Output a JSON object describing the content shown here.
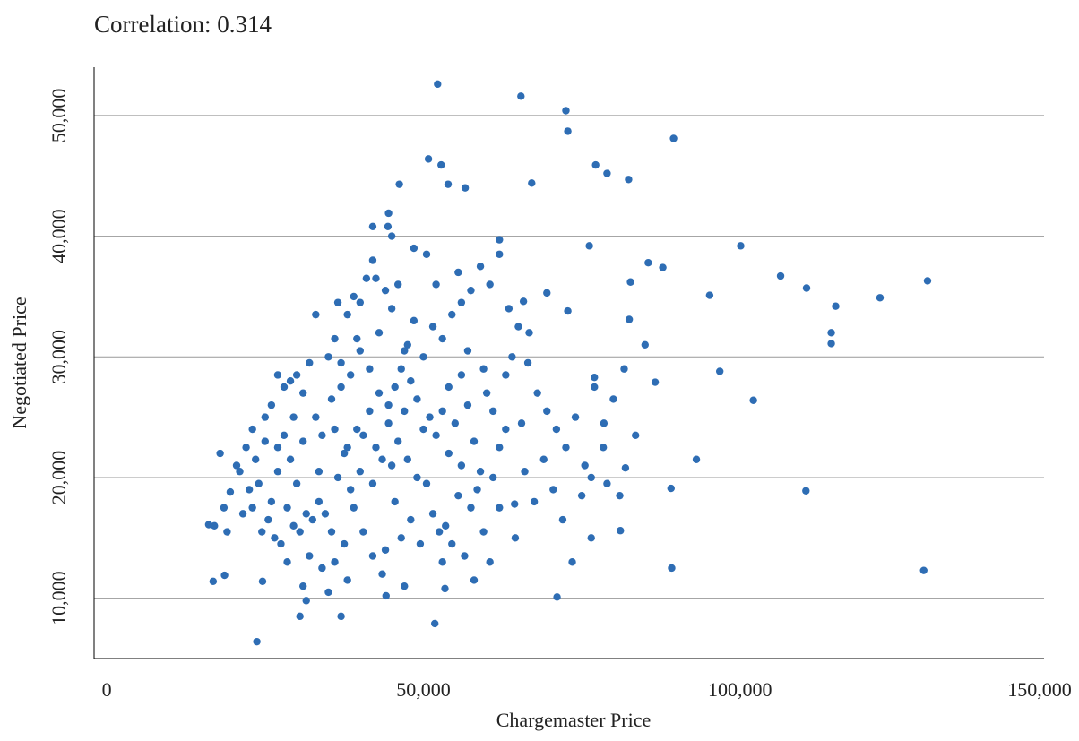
{
  "chart_data": {
    "type": "scatter",
    "title": "Correlation: 0.314",
    "xlabel": "Chargemaster Price",
    "ylabel": "Negotiated Price",
    "color": "#2e6db4",
    "grid": true,
    "xlim": [
      -2000,
      148000
    ],
    "ylim": [
      5000,
      54000
    ],
    "xticks": [
      0,
      {
        "value": 50000,
        "label": "50,000"
      },
      {
        "value": 100000,
        "label": "100,000"
      },
      {
        "value": 150000,
        "label": "150,000"
      }
    ],
    "yticks": [
      {
        "value": 10000,
        "label": "10,000"
      },
      {
        "value": 20000,
        "label": "20,000"
      },
      {
        "value": 30000,
        "label": "30,000"
      },
      {
        "value": 40000,
        "label": "40,000"
      },
      {
        "value": 50000,
        "label": "50,000"
      }
    ],
    "x": [
      52240,
      65400,
      72500,
      72800,
      89500,
      46200,
      50800,
      52800,
      53900,
      56600,
      67100,
      77200,
      79000,
      82400,
      44500,
      44400,
      42000,
      62000,
      76200,
      100100,
      106400,
      110500,
      129600,
      122100,
      115100,
      95200,
      87800,
      85500,
      82700,
      114400,
      114400,
      102100,
      96800,
      86600,
      93100,
      110400,
      89200,
      129000,
      71100,
      51800,
      23700,
      16800,
      18600,
      24600,
      30500,
      37000,
      31500,
      44100,
      53400,
      64400,
      76500,
      81100,
      78400,
      89100,
      81900,
      17900,
      16100,
      65800,
      66700,
      69500,
      72800,
      82500,
      77000,
      81700,
      17000,
      18500,
      19500,
      20500,
      22000,
      23000,
      24000,
      25000,
      26000,
      27000,
      28000,
      29000,
      30000,
      31000,
      25500,
      26500,
      27500,
      28500,
      29500,
      30500,
      31500,
      32500,
      33500,
      34500,
      35500,
      36500,
      37500,
      38500,
      39500,
      40500,
      41500,
      42500,
      43500,
      44500,
      45500,
      46500,
      47500,
      48500,
      35000,
      36000,
      37000,
      38000,
      39000,
      40000,
      41000,
      42000,
      43000,
      44000,
      45000,
      46000,
      47000,
      48000,
      49000,
      50000,
      51000,
      52000,
      53000,
      54000,
      55000,
      56000,
      57000,
      58000,
      59000,
      60000,
      61000,
      62000,
      63000,
      64000,
      50500,
      51500,
      52500,
      53500,
      54500,
      55500,
      56500,
      57500,
      58500,
      59500,
      60500,
      49500,
      48000,
      46500,
      45500,
      44000,
      42000,
      40500,
      39000,
      37500,
      36000,
      34000,
      32000,
      31000,
      30000,
      29000,
      28000,
      27000,
      33000,
      34000,
      35500,
      37000,
      38500,
      40000,
      41500,
      43000,
      44500,
      46000,
      47500,
      49000,
      50000,
      51500,
      53000,
      54500,
      56000,
      57500,
      59000,
      60500,
      62000,
      63500,
      65000,
      66500,
      68000,
      69500,
      71000,
      72500,
      74000,
      75500,
      77000,
      78500,
      80000,
      66000,
      67500,
      69000,
      70500,
      72000,
      73500,
      75000,
      76500,
      79000,
      81000,
      83500,
      85000,
      62000,
      64500,
      61000,
      63000,
      65500,
      52000,
      50500,
      48500,
      55500,
      45000,
      42500,
      39500,
      36500,
      33000,
      32000,
      25000,
      23500,
      21500,
      24500,
      28500,
      35000,
      38000,
      43500,
      47000,
      53000,
      58000,
      56000,
      54000,
      57000,
      59500,
      47000,
      45000,
      42000,
      40000,
      38000,
      36000,
      31000,
      33500,
      29500,
      26000,
      23000,
      19000,
      21000,
      22500,
      27000
    ],
    "y": [
      52600,
      51600,
      50400,
      48700,
      48100,
      44300,
      46400,
      45900,
      44300,
      44000,
      44400,
      45900,
      45200,
      44700,
      41900,
      40800,
      40800,
      39700,
      39200,
      39200,
      36700,
      35700,
      36300,
      34900,
      34200,
      35100,
      37400,
      37800,
      36200,
      32000,
      31100,
      26400,
      28800,
      27900,
      21500,
      18900,
      12500,
      12300,
      10100,
      7900,
      6400,
      11400,
      11900,
      11400,
      8500,
      8500,
      9800,
      10200,
      10800,
      17800,
      15000,
      15600,
      22500,
      19100,
      20800,
      22000,
      16100,
      34600,
      32000,
      35300,
      33800,
      33100,
      28300,
      29000,
      16000,
      17500,
      18800,
      21000,
      22500,
      24000,
      19500,
      23000,
      26000,
      28500,
      27500,
      28000,
      28500,
      27000,
      16500,
      15000,
      14500,
      17500,
      16000,
      15500,
      17000,
      16500,
      18000,
      17000,
      15500,
      20000,
      22000,
      19000,
      24000,
      23500,
      25500,
      22500,
      21500,
      24500,
      27500,
      29000,
      31000,
      33000,
      30000,
      31500,
      29500,
      33500,
      35000,
      34500,
      36500,
      38000,
      32000,
      35500,
      34000,
      36000,
      30500,
      28000,
      26500,
      24000,
      25000,
      23500,
      25500,
      22000,
      24500,
      21000,
      26000,
      23000,
      20500,
      27000,
      25500,
      22500,
      28500,
      30000,
      19500,
      17000,
      15500,
      16000,
      14500,
      18500,
      13500,
      17500,
      19000,
      15500,
      13000,
      14500,
      16500,
      15000,
      18000,
      14000,
      13500,
      15500,
      17500,
      14500,
      13000,
      12500,
      13500,
      11000,
      19500,
      21500,
      23500,
      20500,
      25000,
      23500,
      26500,
      27500,
      28500,
      30500,
      29000,
      27000,
      26000,
      23000,
      21500,
      20000,
      30000,
      32500,
      31500,
      33500,
      34500,
      35500,
      37500,
      36000,
      38500,
      34000,
      32500,
      29500,
      27000,
      25500,
      24000,
      22500,
      25000,
      21000,
      27500,
      24500,
      26500,
      20500,
      18000,
      21500,
      19000,
      16500,
      13000,
      18500,
      20000,
      19500,
      18500,
      23500,
      31000,
      17500,
      15000,
      20000,
      24000,
      24500,
      36000,
      38500,
      39000,
      37000,
      40000,
      36500,
      31500,
      34500,
      33500,
      29500,
      25000,
      21500,
      17000,
      15500,
      13000,
      10500,
      11500,
      12000,
      11000,
      13000,
      11500,
      28500,
      27500,
      30500,
      29000,
      25500,
      21000,
      19500,
      20500,
      22500,
      24000,
      23000,
      20500,
      25000,
      18000,
      17500,
      15500,
      20500,
      19000,
      22500
    ]
  }
}
